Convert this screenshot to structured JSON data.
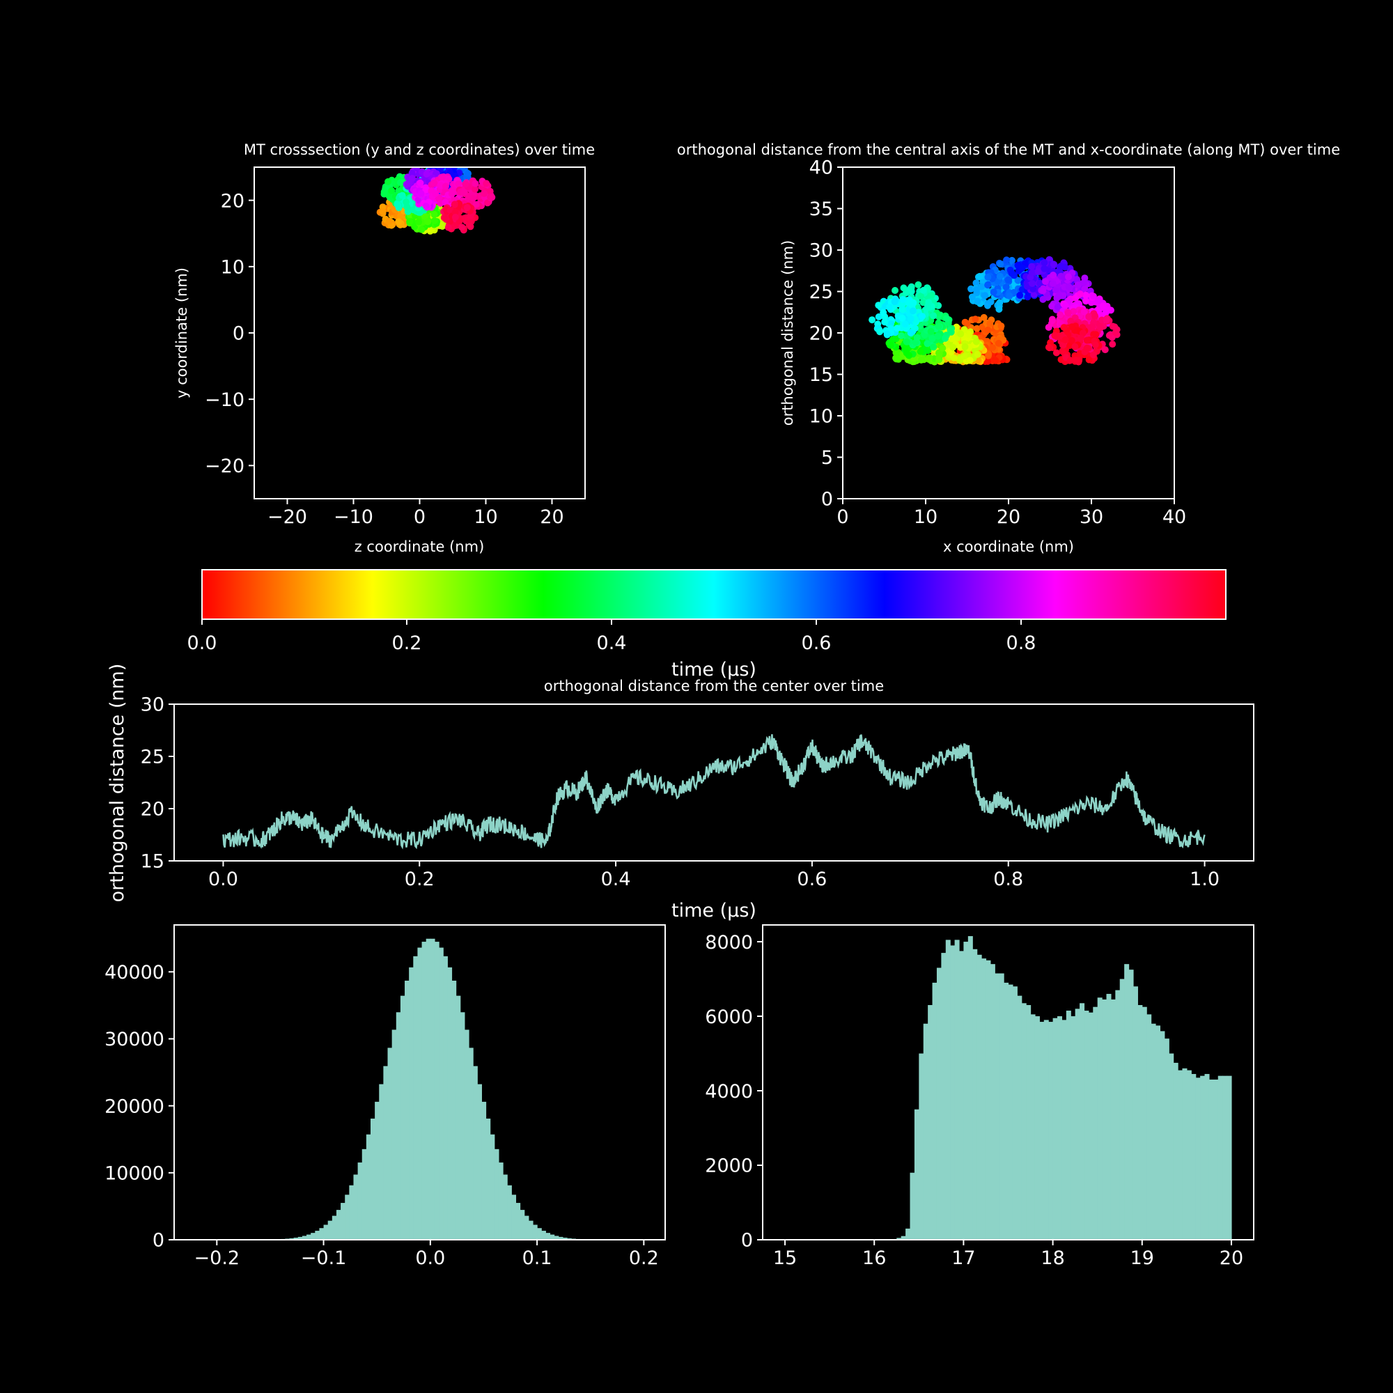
{
  "colors": {
    "background": "#000000",
    "axis": "#ffffff",
    "series": "#8dd3c7"
  },
  "colorbar": {
    "label": "time (µs)",
    "ticks": [
      "0.0",
      "0.2",
      "0.4",
      "0.6",
      "0.8"
    ],
    "colormap": "hsv",
    "range": [
      0,
      1
    ]
  },
  "chart_data": [
    {
      "id": "crosssection",
      "type": "scatter",
      "title": "MT crosssection (y and z coordinates) over time",
      "xlabel": "z coordinate (nm)",
      "ylabel": "y coordinate (nm)",
      "xlim": [
        -25,
        25
      ],
      "ylim": [
        -25,
        25
      ],
      "xticks": [
        "−20",
        "−10",
        "0",
        "10",
        "20"
      ],
      "yticks": [
        "−20",
        "−10",
        "0",
        "10",
        "20"
      ],
      "clusters": [
        {
          "t": 0.02,
          "z": 1.0,
          "y": 17.5
        },
        {
          "t": 0.1,
          "z": -3.5,
          "y": 18.0
        },
        {
          "t": 0.2,
          "z": 1.5,
          "y": 17.3
        },
        {
          "t": 0.3,
          "z": 0.5,
          "y": 17.5
        },
        {
          "t": 0.38,
          "z": -3.0,
          "y": 21.5
        },
        {
          "t": 0.45,
          "z": -1.0,
          "y": 20.0
        },
        {
          "t": 0.52,
          "z": 3.0,
          "y": 23.0
        },
        {
          "t": 0.6,
          "z": 5.0,
          "y": 23.5
        },
        {
          "t": 0.68,
          "z": 3.5,
          "y": 23.5
        },
        {
          "t": 0.76,
          "z": 0.5,
          "y": 23.0
        },
        {
          "t": 0.82,
          "z": 1.5,
          "y": 21.0
        },
        {
          "t": 0.87,
          "z": 4.0,
          "y": 21.5
        },
        {
          "t": 0.9,
          "z": 8.5,
          "y": 21.0
        },
        {
          "t": 0.95,
          "z": 6.0,
          "y": 17.5
        }
      ]
    },
    {
      "id": "orth_vs_x",
      "type": "scatter",
      "title": "orthogonal distance from the central axis of the MT and x-coordinate (along MT) over time",
      "xlabel": "x coordinate (nm)",
      "ylabel": "orthogonal distance (nm)",
      "xlim": [
        0,
        40
      ],
      "ylim": [
        0,
        40
      ],
      "xticks": [
        "0",
        "10",
        "20",
        "30",
        "40"
      ],
      "yticks": [
        "0",
        "5",
        "10",
        "15",
        "20",
        "25",
        "30",
        "35",
        "40"
      ],
      "clusters": [
        {
          "t": 0.02,
          "x": 17.0,
          "y": 17.5
        },
        {
          "t": 0.06,
          "x": 16.5,
          "y": 19.5
        },
        {
          "t": 0.12,
          "x": 14.0,
          "y": 17.5
        },
        {
          "t": 0.2,
          "x": 13.5,
          "y": 18.5
        },
        {
          "t": 0.28,
          "x": 9.0,
          "y": 17.5
        },
        {
          "t": 0.34,
          "x": 8.5,
          "y": 19.5
        },
        {
          "t": 0.4,
          "x": 10.0,
          "y": 20.5
        },
        {
          "t": 0.45,
          "x": 8.5,
          "y": 23.5
        },
        {
          "t": 0.5,
          "x": 6.5,
          "y": 22.0
        },
        {
          "t": 0.55,
          "x": 18.5,
          "y": 25.0
        },
        {
          "t": 0.6,
          "x": 20.5,
          "y": 26.5
        },
        {
          "t": 0.66,
          "x": 23.0,
          "y": 26.5
        },
        {
          "t": 0.72,
          "x": 25.0,
          "y": 26.5
        },
        {
          "t": 0.78,
          "x": 27.0,
          "y": 25.0
        },
        {
          "t": 0.83,
          "x": 29.5,
          "y": 22.5
        },
        {
          "t": 0.88,
          "x": 28.0,
          "y": 20.5
        },
        {
          "t": 0.93,
          "x": 30.0,
          "y": 20.0
        },
        {
          "t": 0.97,
          "x": 28.0,
          "y": 18.5
        }
      ]
    },
    {
      "id": "orth_time",
      "type": "line",
      "title": "orthogonal distance from the center over time",
      "xlabel": "time (µs)",
      "ylabel": "orthogonal distance (nm)",
      "xlim": [
        -0.05,
        1.05
      ],
      "ylim": [
        15,
        30
      ],
      "xticks": [
        "0.0",
        "0.2",
        "0.4",
        "0.6",
        "0.8",
        "1.0"
      ],
      "yticks": [
        "15",
        "20",
        "25",
        "30"
      ],
      "series": [
        {
          "x": [
            0.0,
            0.02,
            0.04,
            0.05,
            0.06,
            0.07,
            0.08,
            0.09,
            0.1,
            0.11,
            0.13,
            0.15,
            0.18,
            0.2,
            0.22,
            0.24,
            0.26,
            0.27,
            0.28,
            0.3,
            0.32,
            0.33,
            0.34,
            0.35,
            0.36,
            0.37,
            0.38,
            0.39,
            0.4,
            0.42,
            0.44,
            0.46,
            0.48,
            0.5,
            0.52,
            0.54,
            0.56,
            0.57,
            0.58,
            0.59,
            0.6,
            0.61,
            0.62,
            0.64,
            0.65,
            0.66,
            0.68,
            0.7,
            0.72,
            0.74,
            0.75,
            0.76,
            0.77,
            0.78,
            0.79,
            0.8,
            0.82,
            0.84,
            0.86,
            0.88,
            0.9,
            0.92,
            0.93,
            0.94,
            0.96,
            0.98,
            1.0
          ],
          "y": [
            17.0,
            17.2,
            17.0,
            17.8,
            19.0,
            19.2,
            18.5,
            19.0,
            17.5,
            17.0,
            19.5,
            18.0,
            17.0,
            17.0,
            18.5,
            19.0,
            17.5,
            18.5,
            18.5,
            18.0,
            17.0,
            16.8,
            21.0,
            22.0,
            21.5,
            23.0,
            20.0,
            21.8,
            21.0,
            23.0,
            22.5,
            21.5,
            22.5,
            24.0,
            24.0,
            25.0,
            26.5,
            24.5,
            22.5,
            24.0,
            26.0,
            24.0,
            24.5,
            25.0,
            26.5,
            25.5,
            23.0,
            22.5,
            24.5,
            25.0,
            25.5,
            25.5,
            21.0,
            20.0,
            21.0,
            20.5,
            19.0,
            18.5,
            19.5,
            20.5,
            20.0,
            23.0,
            21.0,
            19.0,
            17.5,
            17.0,
            17.5
          ]
        }
      ]
    },
    {
      "id": "hist_left",
      "type": "bar",
      "title": "",
      "xlim": [
        -0.24,
        0.22
      ],
      "ylim": [
        0,
        47000
      ],
      "xticks": [
        "−0.2",
        "−0.1",
        "0.0",
        "0.1",
        "0.2"
      ],
      "yticks": [
        "0",
        "10000",
        "20000",
        "30000",
        "40000"
      ],
      "distribution": {
        "mean": 0.0,
        "std": 0.04,
        "peak": 45000,
        "x0": -0.2,
        "x1": 0.2,
        "bins": 100
      }
    },
    {
      "id": "hist_right",
      "type": "bar",
      "title": "",
      "xlim": [
        14.75,
        20.25
      ],
      "ylim": [
        0,
        8450
      ],
      "xticks": [
        "15",
        "16",
        "17",
        "18",
        "19",
        "20"
      ],
      "yticks": [
        "0",
        "2000",
        "4000",
        "6000",
        "8000"
      ],
      "bin_start": 15.0,
      "bin_width": 0.05,
      "values": [
        0,
        0,
        0,
        0,
        0,
        0,
        0,
        0,
        0,
        0,
        0,
        0,
        0,
        0,
        0,
        0,
        0,
        0,
        0,
        0,
        0,
        0,
        0,
        0,
        0,
        50,
        100,
        300,
        1800,
        3500,
        5000,
        5800,
        6300,
        6900,
        7300,
        7700,
        8050,
        7900,
        8050,
        7750,
        8000,
        8150,
        7800,
        7650,
        7550,
        7500,
        7400,
        7150,
        7150,
        6900,
        6850,
        6800,
        6550,
        6350,
        6300,
        6050,
        6000,
        5850,
        5900,
        5850,
        5950,
        6000,
        5900,
        6150,
        6000,
        6200,
        6350,
        6150,
        6100,
        6250,
        6500,
        6450,
        6600,
        6450,
        6700,
        7000,
        7400,
        7250,
        6800,
        6300,
        6250,
        6050,
        5800,
        5750,
        5600,
        5400,
        5000,
        4750,
        4550,
        4600,
        4550,
        4450,
        4350,
        4400,
        4450,
        4300,
        4300,
        4400,
        4400,
        4400
      ]
    }
  ]
}
